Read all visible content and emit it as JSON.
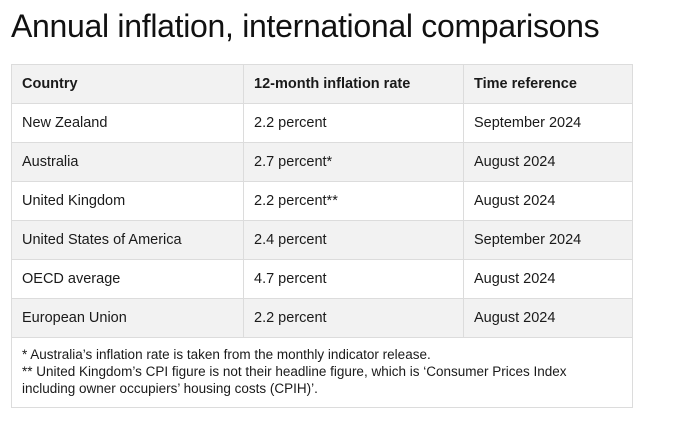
{
  "title": "Annual inflation, international comparisons",
  "table": {
    "headers": [
      "Country",
      "12-month inflation rate",
      "Time reference"
    ],
    "rows": [
      [
        "New Zealand",
        "2.2 percent",
        "September 2024"
      ],
      [
        "Australia",
        "2.7 percent*",
        "August 2024"
      ],
      [
        "United Kingdom",
        "2.2 percent**",
        "August 2024"
      ],
      [
        "United States of America",
        "2.4 percent",
        "September 2024"
      ],
      [
        "OECD average",
        "4.7 percent",
        "August 2024"
      ],
      [
        "European Union",
        "2.2 percent",
        "August 2024"
      ]
    ],
    "notes": [
      "* Australia’s inflation rate is taken from the monthly indicator release.",
      "** United Kingdom’s CPI figure is not their headline figure, which is ‘Consumer Prices Index including owner occupiers’ housing costs (CPIH)’."
    ]
  }
}
